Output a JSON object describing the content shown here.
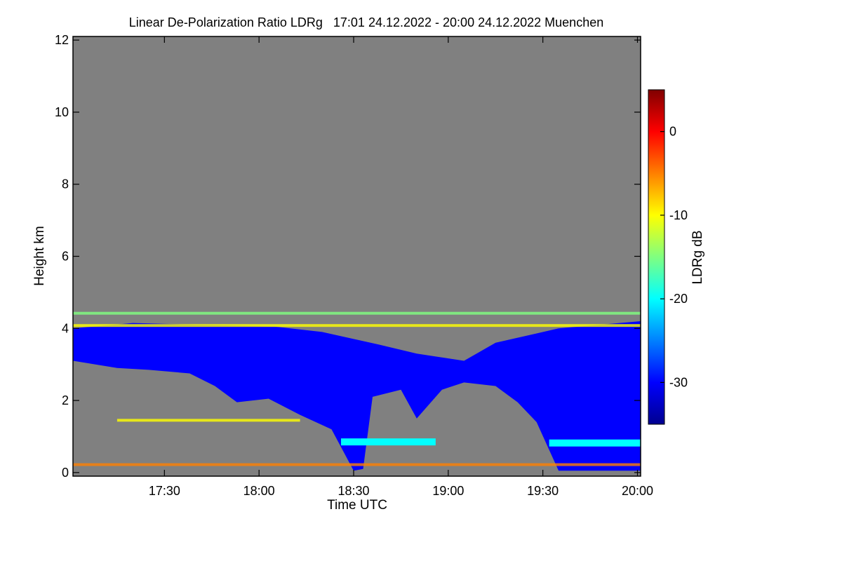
{
  "chart_data": {
    "type": "heatmap",
    "title": "Linear De-Polarization Ratio LDRg   17:01 24.12.2022 - 20:00 24.12.2022 Muenchen",
    "xlabel": "Time UTC",
    "ylabel": "Height km",
    "x_range_minutes": [
      1021,
      1201
    ],
    "x_ticks": [
      {
        "label": "17:30",
        "minutes": 1050
      },
      {
        "label": "18:00",
        "minutes": 1080
      },
      {
        "label": "18:30",
        "minutes": 1110
      },
      {
        "label": "19:00",
        "minutes": 1140
      },
      {
        "label": "19:30",
        "minutes": 1170
      },
      {
        "label": "20:00",
        "minutes": 1200
      }
    ],
    "ylim": [
      -0.1,
      12.1
    ],
    "y_ticks": [
      0,
      2,
      4,
      6,
      8,
      10,
      12
    ],
    "colorbar": {
      "label": "LDRg dB",
      "range": [
        -35,
        5
      ],
      "ticks": [
        0,
        -10,
        -20,
        -30
      ],
      "colors": [
        "#00008f",
        "#0000ff",
        "#0080ff",
        "#00ffff",
        "#80ff80",
        "#ffff00",
        "#ff8000",
        "#ff0000",
        "#800000"
      ]
    },
    "no_signal_color": "#808080",
    "cloud_layer": {
      "description_values_db": -31,
      "top_km": [
        {
          "t": 1021,
          "h": 4.0
        },
        {
          "t": 1040,
          "h": 4.15
        },
        {
          "t": 1060,
          "h": 4.1
        },
        {
          "t": 1085,
          "h": 4.05
        },
        {
          "t": 1100,
          "h": 3.9
        },
        {
          "t": 1118,
          "h": 3.55
        },
        {
          "t": 1130,
          "h": 3.3
        },
        {
          "t": 1145,
          "h": 3.1
        },
        {
          "t": 1155,
          "h": 3.6
        },
        {
          "t": 1175,
          "h": 4.0
        },
        {
          "t": 1201,
          "h": 4.2
        }
      ],
      "base_km": [
        {
          "t": 1021,
          "h": 3.1
        },
        {
          "t": 1035,
          "h": 2.9
        },
        {
          "t": 1045,
          "h": 2.85
        },
        {
          "t": 1058,
          "h": 2.75
        },
        {
          "t": 1066,
          "h": 2.4
        },
        {
          "t": 1073,
          "h": 1.95
        },
        {
          "t": 1083,
          "h": 2.05
        },
        {
          "t": 1093,
          "h": 1.6
        },
        {
          "t": 1103,
          "h": 1.2
        },
        {
          "t": 1110,
          "h": 0.05
        },
        {
          "t": 1113,
          "h": 0.1
        },
        {
          "t": 1116,
          "h": 2.1
        },
        {
          "t": 1125,
          "h": 2.3
        },
        {
          "t": 1130,
          "h": 1.5
        },
        {
          "t": 1138,
          "h": 2.3
        },
        {
          "t": 1145,
          "h": 2.5
        },
        {
          "t": 1155,
          "h": 2.4
        },
        {
          "t": 1162,
          "h": 1.95
        },
        {
          "t": 1168,
          "h": 1.4
        },
        {
          "t": 1175,
          "h": 0.05
        },
        {
          "t": 1201,
          "h": 0.05
        }
      ]
    },
    "melting_layers": [
      {
        "t_start": 1106,
        "t_end": 1136,
        "h_km": 0.85,
        "ldr_db": -22
      },
      {
        "t_start": 1172,
        "t_end": 1201,
        "h_km": 0.82,
        "ldr_db": -21
      }
    ],
    "aerosol_bands": [
      {
        "t_start": 1021,
        "t_end": 1201,
        "h_km": 0.22,
        "ldr_db": -4
      },
      {
        "t_start": 1021,
        "t_end": 1201,
        "h_km": 4.08,
        "ldr_db": -12
      },
      {
        "t_start": 1021,
        "t_end": 1201,
        "h_km": 4.42,
        "ldr_db": -14
      },
      {
        "t_start": 1035,
        "t_end": 1093,
        "h_km": 1.45,
        "ldr_db": -10
      }
    ]
  }
}
